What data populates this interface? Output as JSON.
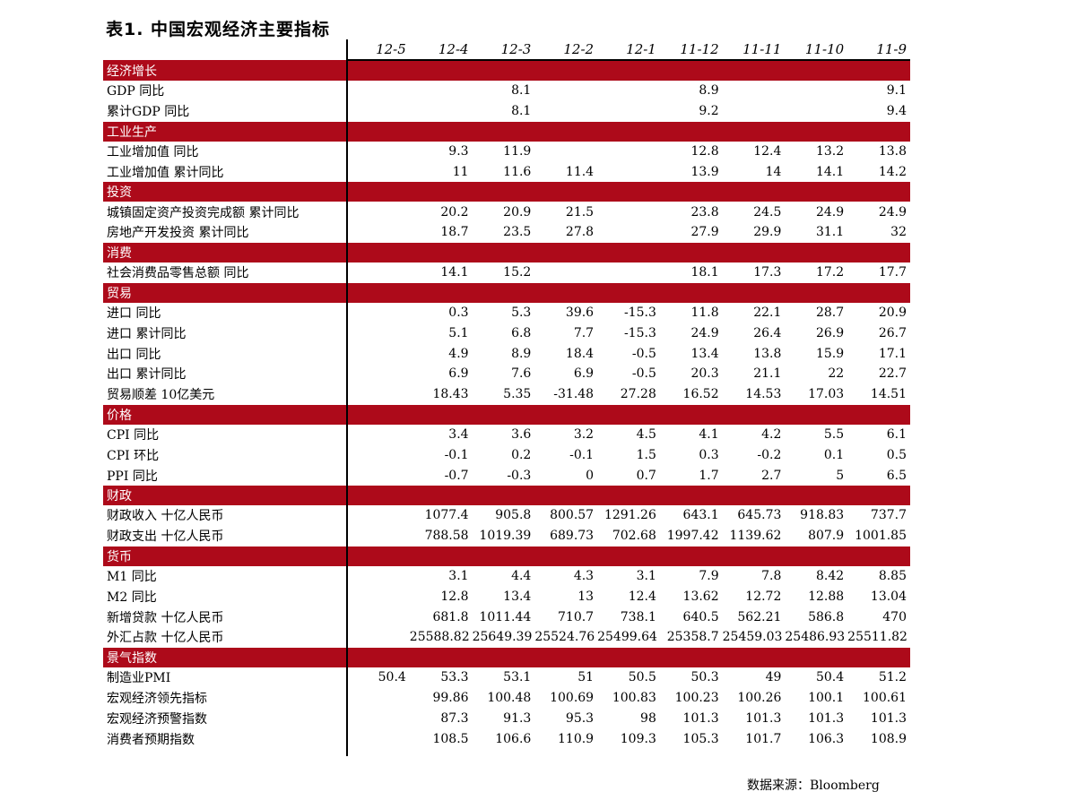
{
  "title": "表1. 中国宏观经济主要指标",
  "columns": [
    "12-5",
    "12-4",
    "12-3",
    "12-2",
    "12-1",
    "11-12",
    "11-11",
    "11-10",
    "11-9"
  ],
  "sections": [
    {
      "name": "经济增长",
      "rows": [
        {
          "label": "GDP 同比",
          "values": [
            "",
            "",
            "8.1",
            "",
            "",
            "8.9",
            "",
            "",
            "9.1"
          ]
        },
        {
          "label": "累计GDP 同比",
          "values": [
            "",
            "",
            "8.1",
            "",
            "",
            "9.2",
            "",
            "",
            "9.4"
          ]
        }
      ]
    },
    {
      "name": "工业生产",
      "rows": [
        {
          "label": "工业增加值 同比",
          "values": [
            "",
            "9.3",
            "11.9",
            "",
            "",
            "12.8",
            "12.4",
            "13.2",
            "13.8"
          ]
        },
        {
          "label": "工业增加值 累计同比",
          "values": [
            "",
            "11",
            "11.6",
            "11.4",
            "",
            "13.9",
            "14",
            "14.1",
            "14.2"
          ]
        }
      ]
    },
    {
      "name": "投资",
      "rows": [
        {
          "label": "城镇固定资产投资完成额 累计同比",
          "values": [
            "",
            "20.2",
            "20.9",
            "21.5",
            "",
            "23.8",
            "24.5",
            "24.9",
            "24.9"
          ]
        },
        {
          "label": "房地产开发投资 累计同比",
          "values": [
            "",
            "18.7",
            "23.5",
            "27.8",
            "",
            "27.9",
            "29.9",
            "31.1",
            "32"
          ]
        }
      ]
    },
    {
      "name": "消费",
      "rows": [
        {
          "label": "社会消费品零售总额 同比",
          "values": [
            "",
            "14.1",
            "15.2",
            "",
            "",
            "18.1",
            "17.3",
            "17.2",
            "17.7"
          ]
        }
      ]
    },
    {
      "name": "贸易",
      "rows": [
        {
          "label": "进口 同比",
          "values": [
            "",
            "0.3",
            "5.3",
            "39.6",
            "-15.3",
            "11.8",
            "22.1",
            "28.7",
            "20.9"
          ]
        },
        {
          "label": "进口 累计同比",
          "values": [
            "",
            "5.1",
            "6.8",
            "7.7",
            "-15.3",
            "24.9",
            "26.4",
            "26.9",
            "26.7"
          ]
        },
        {
          "label": "出口 同比",
          "values": [
            "",
            "4.9",
            "8.9",
            "18.4",
            "-0.5",
            "13.4",
            "13.8",
            "15.9",
            "17.1"
          ]
        },
        {
          "label": "出口 累计同比",
          "values": [
            "",
            "6.9",
            "7.6",
            "6.9",
            "-0.5",
            "20.3",
            "21.1",
            "22",
            "22.7"
          ]
        },
        {
          "label": "贸易顺差 10亿美元",
          "values": [
            "",
            "18.43",
            "5.35",
            "-31.48",
            "27.28",
            "16.52",
            "14.53",
            "17.03",
            "14.51"
          ]
        }
      ]
    },
    {
      "name": "价格",
      "rows": [
        {
          "label": "CPI 同比",
          "values": [
            "",
            "3.4",
            "3.6",
            "3.2",
            "4.5",
            "4.1",
            "4.2",
            "5.5",
            "6.1"
          ]
        },
        {
          "label": "CPI 环比",
          "values": [
            "",
            "-0.1",
            "0.2",
            "-0.1",
            "1.5",
            "0.3",
            "-0.2",
            "0.1",
            "0.5"
          ]
        },
        {
          "label": "PPI 同比",
          "values": [
            "",
            "-0.7",
            "-0.3",
            "0",
            "0.7",
            "1.7",
            "2.7",
            "5",
            "6.5"
          ]
        }
      ]
    },
    {
      "name": "财政",
      "rows": [
        {
          "label": "财政收入 十亿人民币",
          "values": [
            "",
            "1077.4",
            "905.8",
            "800.57",
            "1291.26",
            "643.1",
            "645.73",
            "918.83",
            "737.7"
          ]
        },
        {
          "label": "财政支出 十亿人民币",
          "values": [
            "",
            "788.58",
            "1019.39",
            "689.73",
            "702.68",
            "1997.42",
            "1139.62",
            "807.9",
            "1001.85"
          ]
        }
      ]
    },
    {
      "name": "货币",
      "rows": [
        {
          "label": "M1 同比",
          "values": [
            "",
            "3.1",
            "4.4",
            "4.3",
            "3.1",
            "7.9",
            "7.8",
            "8.42",
            "8.85"
          ]
        },
        {
          "label": "M2 同比",
          "values": [
            "",
            "12.8",
            "13.4",
            "13",
            "12.4",
            "13.62",
            "12.72",
            "12.88",
            "13.04"
          ]
        },
        {
          "label": "新增贷款 十亿人民币",
          "values": [
            "",
            "681.8",
            "1011.44",
            "710.7",
            "738.1",
            "640.5",
            "562.21",
            "586.8",
            "470"
          ]
        },
        {
          "label": "外汇占款 十亿人民币",
          "values": [
            "",
            "25588.82",
            "25649.39",
            "25524.76",
            "25499.64",
            "25358.7",
            "25459.03",
            "25486.93",
            "25511.82"
          ]
        }
      ]
    },
    {
      "name": "景气指数",
      "rows": [
        {
          "label": "制造业PMI",
          "values": [
            "50.4",
            "53.3",
            "53.1",
            "51",
            "50.5",
            "50.3",
            "49",
            "50.4",
            "51.2"
          ]
        },
        {
          "label": "宏观经济领先指标",
          "values": [
            "",
            "99.86",
            "100.48",
            "100.69",
            "100.83",
            "100.23",
            "100.26",
            "100.1",
            "100.61"
          ]
        },
        {
          "label": "宏观经济预警指数",
          "values": [
            "",
            "87.3",
            "91.3",
            "95.3",
            "98",
            "101.3",
            "101.3",
            "101.3",
            "101.3"
          ]
        },
        {
          "label": "消费者预期指数",
          "values": [
            "",
            "108.5",
            "106.6",
            "110.9",
            "109.3",
            "105.3",
            "101.7",
            "106.3",
            "108.9"
          ]
        }
      ]
    }
  ],
  "source": "数据来源：Bloomberg",
  "colors": {
    "section_bg": "#ad0a1a"
  }
}
